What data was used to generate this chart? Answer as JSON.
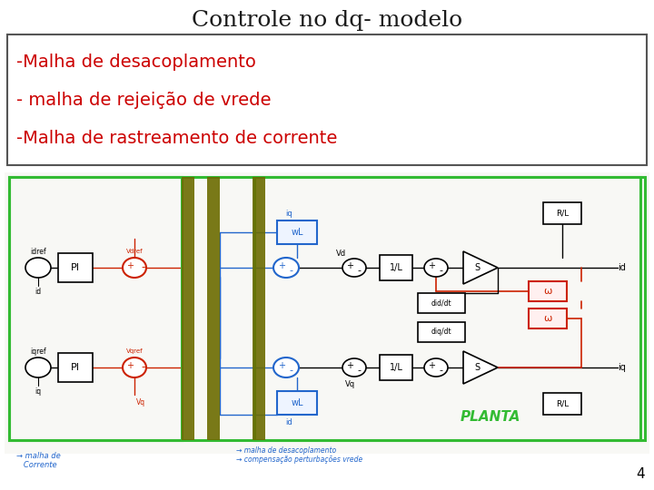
{
  "title": "Controle no dq- modelo",
  "title_fontsize": 18,
  "title_color": "#1a1a1a",
  "bg_color": "#ffffff",
  "text_box_lines": [
    "-Malha de desacoplamento",
    "- malha de rejeição de vrede",
    "-Malha de rastreamento de corrente"
  ],
  "text_color": "#cc0000",
  "text_fontsize": 14,
  "page_number": "4",
  "green_color": "#33bb33",
  "olive_color": "#6b6b00",
  "blue_color": "#2266cc",
  "red_color": "#cc2200"
}
